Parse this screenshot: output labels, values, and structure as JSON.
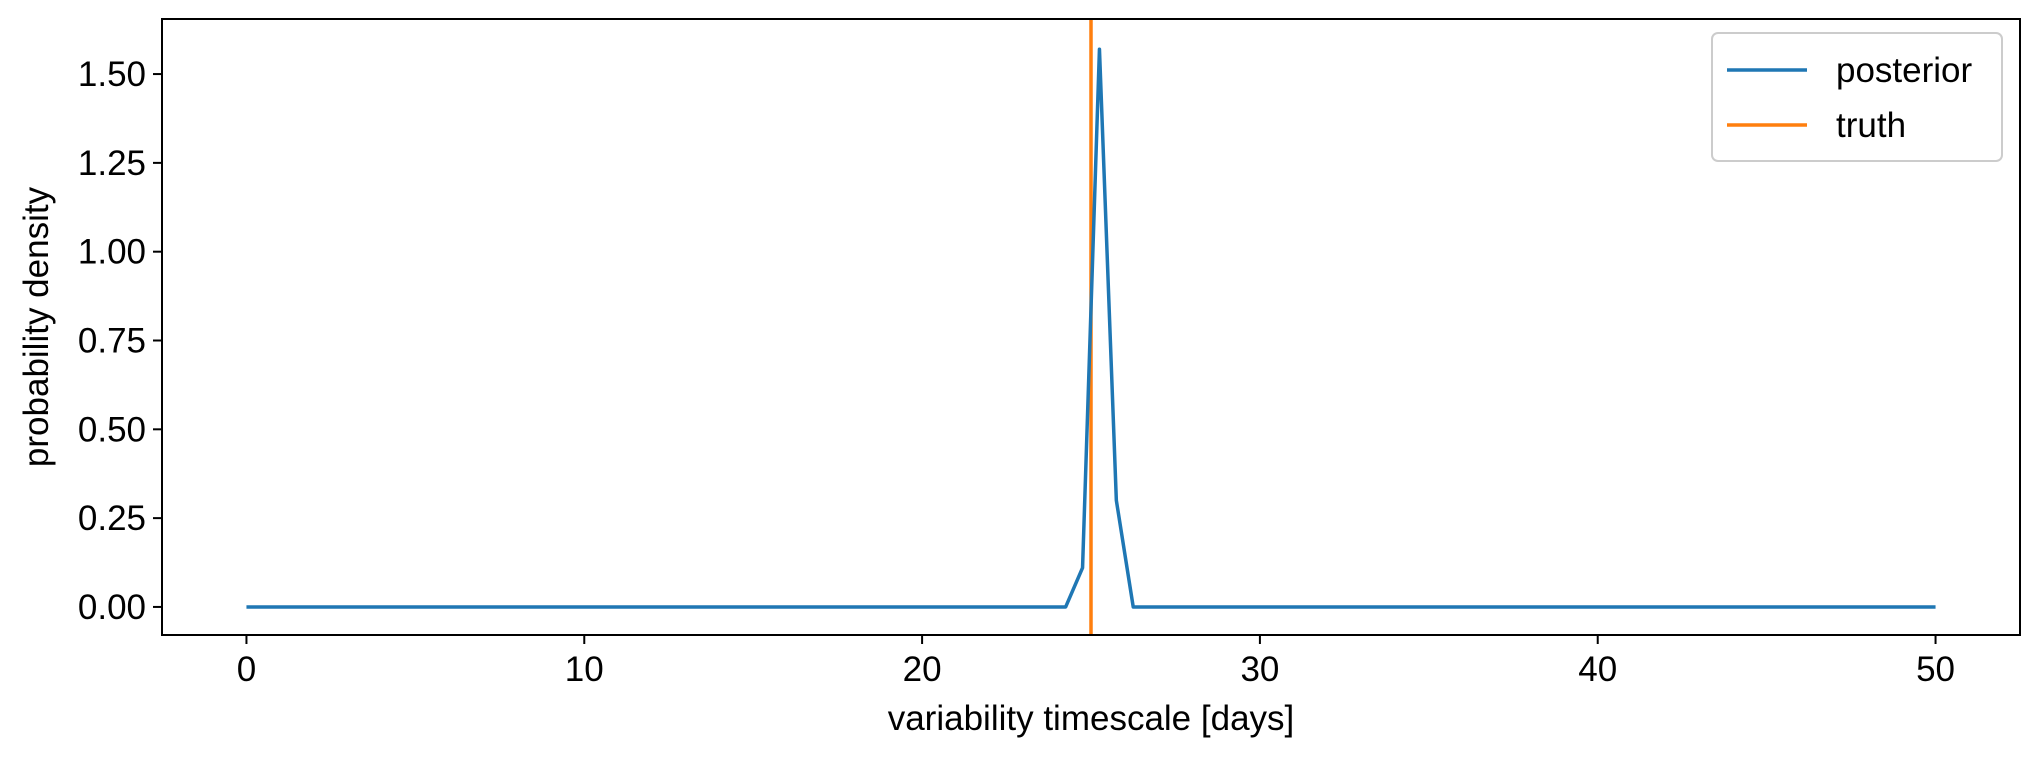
{
  "chart_data": {
    "type": "line",
    "title": "",
    "xlabel": "variability timescale [days]",
    "ylabel": "probability density",
    "xlim": [
      -2.5,
      52.5
    ],
    "ylim": [
      -0.079,
      1.655
    ],
    "xticks": [
      0,
      10,
      20,
      30,
      40,
      50
    ],
    "xtick_labels": [
      "0",
      "10",
      "20",
      "30",
      "40",
      "50"
    ],
    "yticks": [
      0,
      0.25,
      0.5,
      0.75,
      1.0,
      1.25,
      1.5
    ],
    "ytick_labels": [
      "0.00",
      "0.25",
      "0.50",
      "0.75",
      "1.00",
      "1.25",
      "1.50"
    ],
    "grid": false,
    "legend_position": "top-right",
    "series": [
      {
        "name": "posterior",
        "color": "#1f77b4",
        "x": [
          0,
          24.25,
          24.75,
          25.25,
          25.75,
          26.25,
          26.75,
          50
        ],
        "y": [
          0.0,
          0.0,
          0.11,
          1.57,
          0.3,
          0.0,
          0.0,
          0.0
        ]
      }
    ],
    "vlines": [
      {
        "name": "truth",
        "color": "#ff7f0e",
        "x": 25
      }
    ]
  }
}
